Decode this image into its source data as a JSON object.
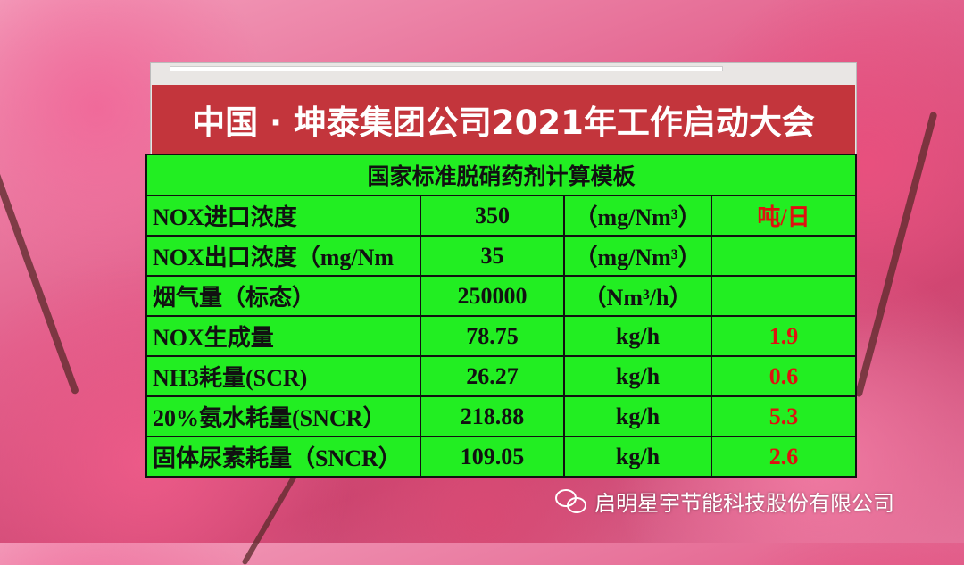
{
  "banner": {
    "title": "中国 · 坤泰集团公司2021年工作启动大会"
  },
  "table": {
    "title": "国家标准脱硝药剂计算模板",
    "rows": [
      {
        "label": "NOX进口浓度",
        "value": "350",
        "unit": "（mg/Nm³）",
        "extra": "吨/日"
      },
      {
        "label": "NOX出口浓度（mg/Nm",
        "value": "35",
        "unit": "（mg/Nm³）",
        "extra": ""
      },
      {
        "label": "烟气量（标态）",
        "value": "250000",
        "unit": "（Nm³/h）",
        "extra": ""
      },
      {
        "label": "NOX生成量",
        "value": "78.75",
        "unit": "kg/h",
        "extra": "1.9"
      },
      {
        "label": "NH3耗量(SCR)",
        "value": "26.27",
        "unit": "kg/h",
        "extra": "0.6"
      },
      {
        "label": "20%氨水耗量(SNCR）",
        "value": "218.88",
        "unit": "kg/h",
        "extra": "5.3"
      },
      {
        "label": "固体尿素耗量（SNCR）",
        "value": "109.05",
        "unit": "kg/h",
        "extra": "2.6"
      }
    ]
  },
  "watermark": {
    "icon": "wechat-icon",
    "text": "启明星宇节能科技股份有限公司"
  },
  "colors": {
    "banner": "#c3353c",
    "table": "#22ee22",
    "highlight": "#e01010"
  }
}
